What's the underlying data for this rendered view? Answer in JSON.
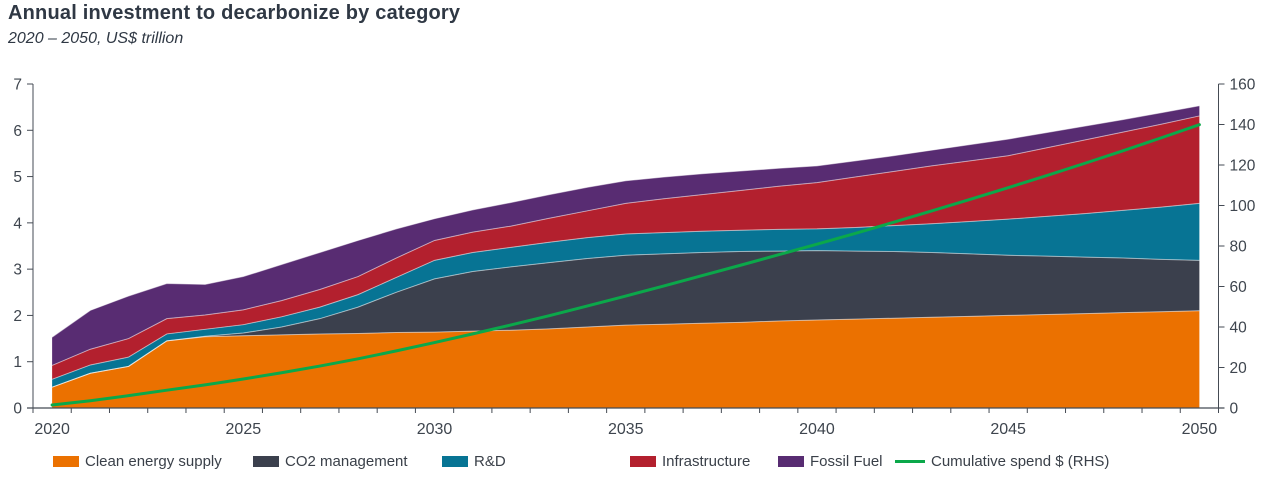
{
  "header": {
    "title": "Annual investment to decarbonize by category",
    "subtitle": "2020 – 2050, US$ trillion"
  },
  "chart_data": {
    "type": "area",
    "stacked": true,
    "title": "Annual investment to decarbonize by category",
    "subtitle": "2020 – 2050, US$ trillion",
    "units_left": "US$ trillion per year",
    "units_right": "US$ trillion cumulative",
    "grid": false,
    "legend_position": "bottom",
    "years": [
      2020,
      2021,
      2022,
      2023,
      2024,
      2025,
      2026,
      2027,
      2028,
      2029,
      2030,
      2031,
      2032,
      2033,
      2034,
      2035,
      2036,
      2037,
      2038,
      2039,
      2040,
      2041,
      2042,
      2043,
      2044,
      2045,
      2046,
      2047,
      2048,
      2049,
      2050
    ],
    "x_tick_labels": [
      "2020",
      "2025",
      "2030",
      "2035",
      "2040",
      "2045",
      "2050"
    ],
    "left_axis": {
      "min": 0,
      "max": 7,
      "ticks": [
        0,
        1,
        2,
        3,
        4,
        5,
        6,
        7
      ]
    },
    "right_axis": {
      "min": 0,
      "max": 160,
      "ticks": [
        0,
        20,
        40,
        60,
        80,
        100,
        120,
        140,
        160
      ]
    },
    "axis_color": "#454B54",
    "tick_label_color": "#3E454E",
    "series": [
      {
        "name": "Clean energy supply",
        "style": "area",
        "axis": "left",
        "color": "#EB7100",
        "values": [
          0.45,
          0.75,
          0.9,
          1.45,
          1.54,
          1.56,
          1.58,
          1.6,
          1.61,
          1.63,
          1.64,
          1.66,
          1.68,
          1.71,
          1.75,
          1.79,
          1.81,
          1.83,
          1.85,
          1.88,
          1.9,
          1.92,
          1.94,
          1.96,
          1.98,
          2.0,
          2.02,
          2.04,
          2.06,
          2.08,
          2.1
        ]
      },
      {
        "name": "CO2 management",
        "style": "area",
        "axis": "left",
        "color": "#3B404D",
        "values": [
          0,
          0,
          0,
          0,
          0.01,
          0.06,
          0.17,
          0.33,
          0.57,
          0.87,
          1.15,
          1.29,
          1.37,
          1.43,
          1.48,
          1.51,
          1.52,
          1.53,
          1.53,
          1.51,
          1.5,
          1.47,
          1.44,
          1.4,
          1.35,
          1.3,
          1.26,
          1.22,
          1.18,
          1.13,
          1.09
        ]
      },
      {
        "name": "R&D",
        "style": "area",
        "axis": "left",
        "color": "#077494",
        "values": [
          0.17,
          0.18,
          0.2,
          0.15,
          0.15,
          0.18,
          0.22,
          0.25,
          0.27,
          0.32,
          0.4,
          0.41,
          0.42,
          0.44,
          0.45,
          0.46,
          0.46,
          0.46,
          0.46,
          0.47,
          0.47,
          0.51,
          0.56,
          0.62,
          0.7,
          0.78,
          0.86,
          0.94,
          1.03,
          1.13,
          1.23
        ]
      },
      {
        "name": "Infrastructure",
        "style": "area",
        "axis": "left",
        "color": "#B3202E",
        "values": [
          0.3,
          0.34,
          0.4,
          0.33,
          0.31,
          0.32,
          0.35,
          0.38,
          0.39,
          0.42,
          0.43,
          0.44,
          0.46,
          0.52,
          0.58,
          0.66,
          0.73,
          0.79,
          0.86,
          0.93,
          1.0,
          1.09,
          1.17,
          1.25,
          1.31,
          1.37,
          1.48,
          1.59,
          1.69,
          1.79,
          1.89
        ]
      },
      {
        "name": "Fossil Fuel",
        "style": "area",
        "axis": "left",
        "color": "#582C72",
        "values": [
          0.61,
          0.84,
          0.92,
          0.76,
          0.66,
          0.72,
          0.78,
          0.8,
          0.78,
          0.63,
          0.47,
          0.48,
          0.51,
          0.51,
          0.51,
          0.49,
          0.47,
          0.45,
          0.42,
          0.39,
          0.36,
          0.35,
          0.34,
          0.34,
          0.35,
          0.36,
          0.33,
          0.3,
          0.27,
          0.25,
          0.22
        ]
      },
      {
        "name": "Cumulative spend $ (RHS)",
        "style": "line",
        "axis": "right",
        "color": "#0BA84A",
        "values": [
          1.5,
          3.6,
          6.1,
          8.8,
          11.4,
          14.3,
          17.4,
          20.7,
          24.3,
          28.2,
          32.3,
          36.6,
          41.0,
          45.6,
          50.4,
          55.3,
          60.3,
          65.4,
          70.5,
          75.7,
          80.9,
          86.2,
          91.7,
          97.3,
          103.0,
          108.8,
          114.7,
          120.8,
          127.0,
          133.4,
          139.9
        ]
      }
    ]
  }
}
